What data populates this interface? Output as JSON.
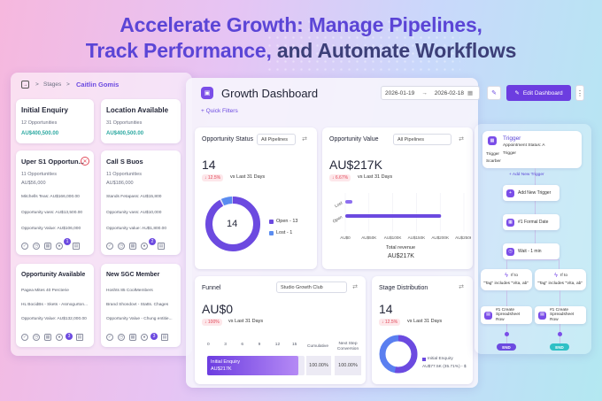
{
  "headline": {
    "line1": "Accelerate Growth: Manage Pipelines,",
    "line2a": "Track Performance,",
    "line2b": " and Automate Workflows"
  },
  "pipeline": {
    "breadcrumb_stages": "Stages",
    "breadcrumb_sep": ">",
    "breadcrumb_user": "Caitlin Gomis",
    "stages": [
      {
        "title": "Initial Enquiry",
        "count": "12 Opportunities",
        "amount": "AU$400,500.00"
      },
      {
        "title": "Location Available",
        "count": "31 Opportunities",
        "amount": "AU$400,500.00"
      }
    ],
    "cards": [
      {
        "title": "Uper S1 Opportun...",
        "sub1": "11 Opportunities",
        "sub2": "AU$56,000",
        "l1": "Mitchells Teas: AU$166,000.00",
        "l2": "Opportunity vass: AU$13,500.00",
        "l3": "Opportunity Value: AU$106,000",
        "badge": "1"
      },
      {
        "title": "Call S Buos",
        "sub1": "11 Opportunities",
        "sub2": "AU$186,000",
        "l1": "Stands Fetapass: AU$15,800",
        "l2": "Opportunity vass: AU$10,000",
        "l3": "Opportunity value: AU$1,800.00",
        "badge": "2"
      },
      {
        "title": "Opportunity Available",
        "l1": "Pagea Mites 40 Percterie",
        "l2": "HL BocidBs - Skets - Asmogurton...",
        "l3": "Opportunity Value: AU$132,000.00",
        "badge": "3"
      },
      {
        "title": "New SGC Member",
        "l1": "Hoshts 85 CoolMembers",
        "l2": "Brand Shondovt - Statts. Chages",
        "l3": "Opportunity Value - Chung entitie...",
        "badge": "3"
      }
    ]
  },
  "dashboard": {
    "title": "Growth Dashboard",
    "date_from": "2026-01-19",
    "date_arrow": "→",
    "date_to": "2026-02-18",
    "edit_label": "Edit Dashboard",
    "quick_filters": "+ Quick Filters",
    "status": {
      "title": "Opportunity Status",
      "filter": "All Pipelines",
      "value": "14",
      "change": "↓ 12.5%",
      "vs": "vs Last 31 Days",
      "center": "14",
      "legend": [
        "Open - 13",
        "Lost - 1"
      ],
      "open": 13,
      "lost": 1
    },
    "value": {
      "title": "Opportunity Value",
      "filter": "All Pipelines",
      "value": "AU$217K",
      "change": "↓ 6.67%",
      "vs": "vs Last 31 Days",
      "ylabels": [
        "Lost",
        "Open"
      ],
      "xticks": [
        "AU$0",
        "AU$50K",
        "AU$100K",
        "AU$150K",
        "AU$200K",
        "AU$250K"
      ],
      "bars": [
        {
          "label": "Lost",
          "value": 15000
        },
        {
          "label": "Open",
          "value": 202000
        }
      ],
      "xmax": 250000,
      "total_label": "Total revenue",
      "total": "AU$217K"
    },
    "funnel": {
      "title": "Funnel",
      "filter": "Studio Growth Club",
      "value": "AU$0",
      "change": "↓ 100%",
      "vs": "vs Last 31 Days",
      "ticks": [
        "0",
        "3",
        "6",
        "9",
        "12",
        "15"
      ],
      "col1": "Cumulative",
      "col2": "Next Step Conversion",
      "bar_label": "Initial Enquiry",
      "bar_amount": "AU$217K",
      "bar_value": 14,
      "max": 15,
      "c1": "100.00%",
      "c2": "100.00%"
    },
    "stage": {
      "title": "Stage Distribution",
      "value": "14",
      "change": "↓ 12.5%",
      "vs": "vs Last 31 Days",
      "legend": "Initial Enquiry",
      "legend2": "AU$77.5K (35.71%) - $"
    }
  },
  "workflow": {
    "trigger_title": "Trigger",
    "trigger_sub": "Appointment Status: A",
    "trigger_k1": "Trigger",
    "trigger_v1": "Trigger",
    "trigger_k2": "Scarber",
    "add_trigger": "+ Add New Trigger",
    "add_trigger2": "Add New Trigger",
    "format_date": "#1 Formal Date",
    "wait": "Wait - 1 min",
    "branch_left": "If to",
    "branch_left_sub": "\"Tag\" includes \"Vita, ab\"",
    "branch_right": "If to",
    "branch_right_sub": "\"Tag\" includes \"Vita, ab\"",
    "sheet_left": "#1 Create Spreadsheet Row",
    "sheet_right": "#1 Create Spreadsheet Row",
    "end_left": "END",
    "end_right": "END",
    "accent": "#7a4de8",
    "end_left_color": "#6c4ae0",
    "end_right_color": "#2fc0c6"
  }
}
